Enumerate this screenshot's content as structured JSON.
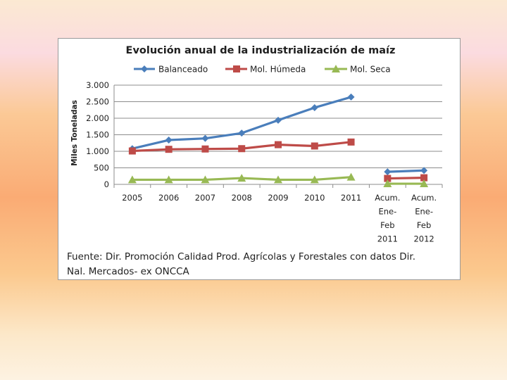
{
  "chart_data": {
    "type": "line",
    "title": "Evolución anual de la industrialización de maíz",
    "ylabel": "Miles Toneladas",
    "xlabel": "",
    "ylim": [
      0,
      3000
    ],
    "y_ticks": [
      0,
      500,
      1000,
      1500,
      2000,
      2500,
      3000
    ],
    "y_tick_labels": [
      "0",
      "500",
      "1.000",
      "1.500",
      "2.000",
      "2.500",
      "3.000"
    ],
    "categories": [
      "2005",
      "2006",
      "2007",
      "2008",
      "2009",
      "2010",
      "2011",
      "Acum. Ene-Feb 2011",
      "Acum. Ene-Feb 2012"
    ],
    "category_label_lines": [
      [
        "2005"
      ],
      [
        "2006"
      ],
      [
        "2007"
      ],
      [
        "2008"
      ],
      [
        "2009"
      ],
      [
        "2010"
      ],
      [
        "2011"
      ],
      [
        "Acum.",
        "Ene-",
        "Feb",
        "2011"
      ],
      [
        "Acum.",
        "Ene-",
        "Feb",
        "2012"
      ]
    ],
    "line_segments": [
      [
        0,
        6
      ],
      [
        7,
        8
      ]
    ],
    "series": [
      {
        "name": "Balanceado",
        "color": "#4a7ebb",
        "marker": "diamond",
        "values": [
          1080,
          1340,
          1390,
          1550,
          1940,
          2320,
          2640,
          380,
          420
        ]
      },
      {
        "name": "Mol. Húmeda",
        "color": "#be4b48",
        "marker": "square",
        "values": [
          1010,
          1060,
          1070,
          1080,
          1200,
          1160,
          1280,
          180,
          200
        ]
      },
      {
        "name": "Mol. Seca",
        "color": "#98b954",
        "marker": "triangle",
        "values": [
          140,
          140,
          140,
          190,
          140,
          140,
          220,
          20,
          20
        ]
      }
    ],
    "grid": true,
    "legend": "top"
  },
  "source_note": {
    "line1": "Fuente: Dir. Promoción Calidad Prod. Agrícolas y Forestales con datos Dir.",
    "line2": "Nal. Mercados- ex ONCCA"
  }
}
